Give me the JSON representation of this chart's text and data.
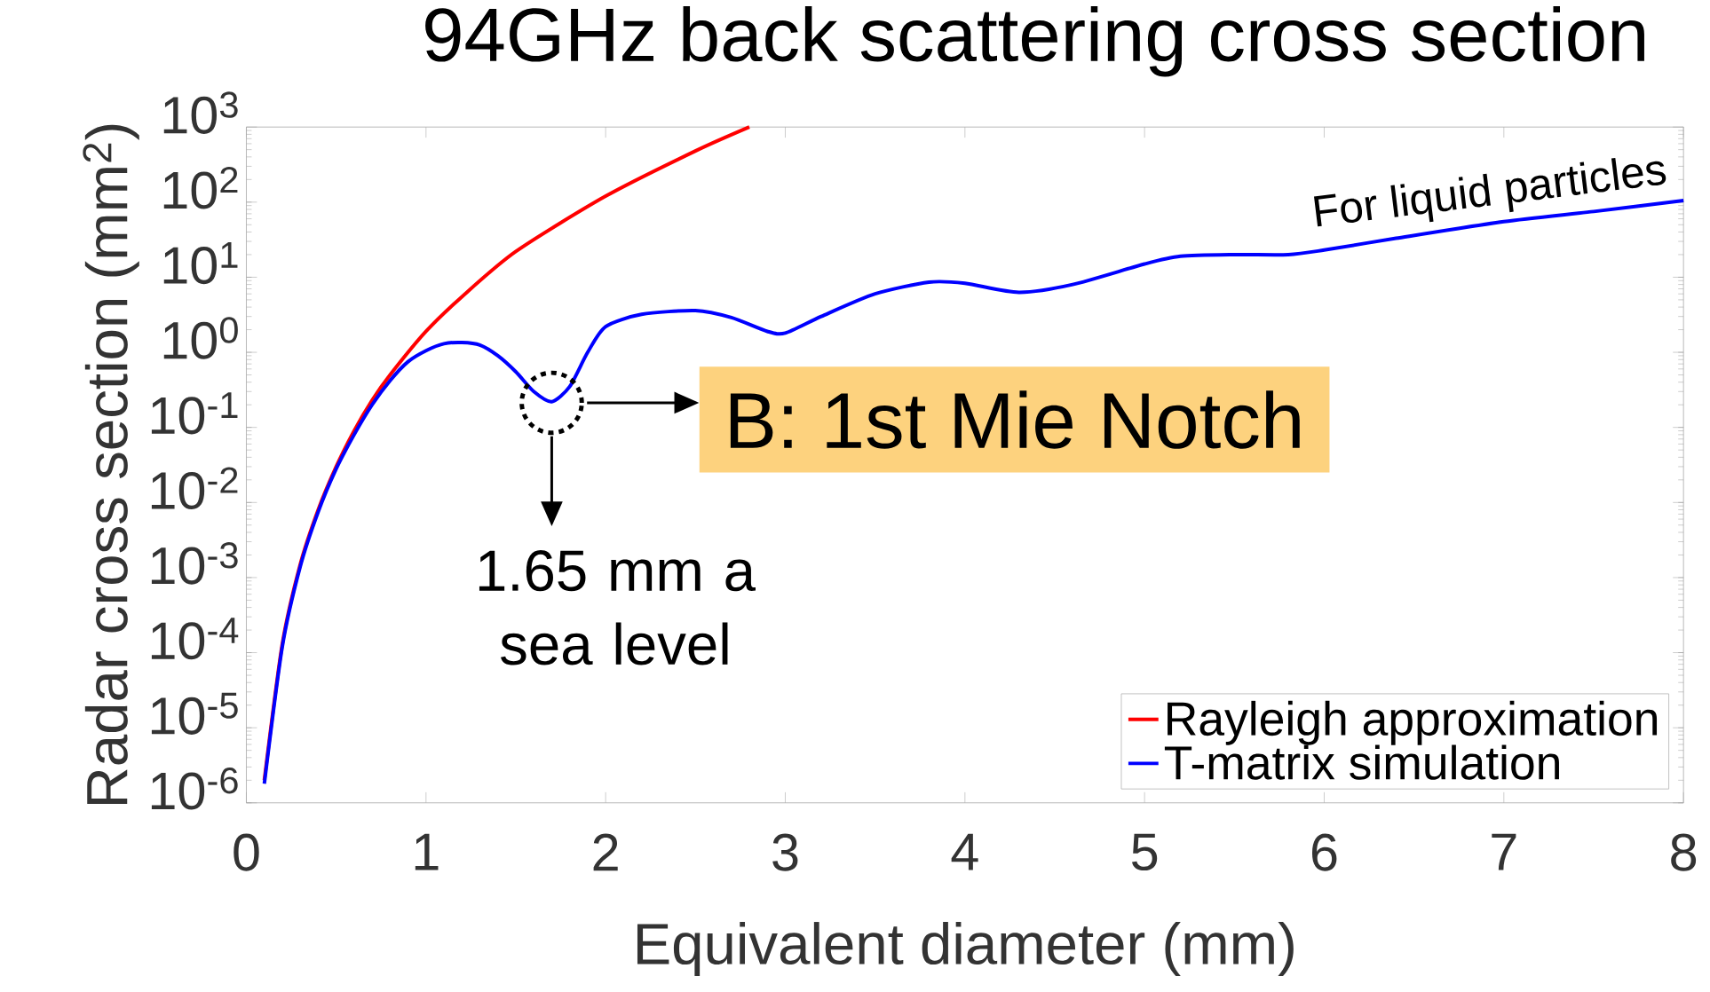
{
  "chart_data": {
    "type": "line",
    "title": "94GHz back scattering cross section",
    "xlabel": "Equivalent diameter (mm)",
    "ylabel": "Radar cross section (mm$^{2}$)",
    "log": "y",
    "xlim": [
      0,
      8
    ],
    "xticks": [
      0,
      1,
      2,
      3,
      4,
      5,
      6,
      7,
      8
    ],
    "ylim": [
      1e-06,
      1000
    ],
    "yticks": [
      {
        "value": 1e-06,
        "label": "10$^{-6}$"
      },
      {
        "value": 1e-05,
        "label": "10$^{-5}$"
      },
      {
        "value": 0.0001,
        "label": "10$^{-4}$"
      },
      {
        "value": 0.001,
        "label": "10$^{-3}$"
      },
      {
        "value": 0.01,
        "label": "10$^{-2}$"
      },
      {
        "value": 0.1,
        "label": "10$^{-1}$"
      },
      {
        "value": 1,
        "label": "10$^{0}$"
      },
      {
        "value": 10,
        "label": "10$^{1}$"
      },
      {
        "value": 100,
        "label": "10$^{2}$"
      },
      {
        "value": 1000,
        "label": "10$^{3}$"
      }
    ],
    "grid": false,
    "legend": "bottom right",
    "marker": "none",
    "line_style": "solid",
    "series": [
      {
        "name": "Rayleigh approximation",
        "color": "#ff0000",
        "x": [
          0.1,
          0.2,
          0.3,
          0.4,
          0.5,
          0.6,
          0.7,
          0.8,
          1.0,
          1.2,
          1.5,
          2.0,
          2.5,
          2.8
        ],
        "values": [
          2e-06,
          0.00013,
          0.0015,
          0.008,
          0.03,
          0.09,
          0.23,
          0.5,
          1.9,
          5.5,
          22,
          120,
          480,
          1000
        ]
      },
      {
        "name": "T-matrix simulation",
        "color": "#0000ff",
        "x": [
          0.1,
          0.2,
          0.3,
          0.4,
          0.5,
          0.6,
          0.7,
          0.8,
          0.9,
          1.0,
          1.1,
          1.2,
          1.3,
          1.4,
          1.5,
          1.6,
          1.7,
          1.8,
          1.9,
          2.0,
          2.2,
          2.5,
          2.7,
          2.9,
          3.0,
          3.2,
          3.5,
          3.8,
          4.0,
          4.3,
          4.6,
          5.0,
          5.2,
          5.5,
          5.8,
          6.0,
          6.4,
          7.0,
          7.5,
          8.0
        ],
        "values": [
          1.8e-06,
          0.00012,
          0.0014,
          0.0075,
          0.028,
          0.08,
          0.2,
          0.42,
          0.75,
          1.05,
          1.3,
          1.35,
          1.25,
          0.9,
          0.55,
          0.3,
          0.22,
          0.35,
          1.0,
          2.2,
          3.2,
          3.6,
          2.9,
          1.9,
          1.8,
          3.0,
          6.0,
          8.6,
          8.3,
          6.3,
          8.0,
          15,
          19,
          20,
          20,
          23,
          33,
          55,
          75,
          105
        ]
      }
    ],
    "annotations": [
      "B: 1st Mie Notch",
      "1.65 mm a sea level",
      "For liquid particles"
    ]
  }
}
